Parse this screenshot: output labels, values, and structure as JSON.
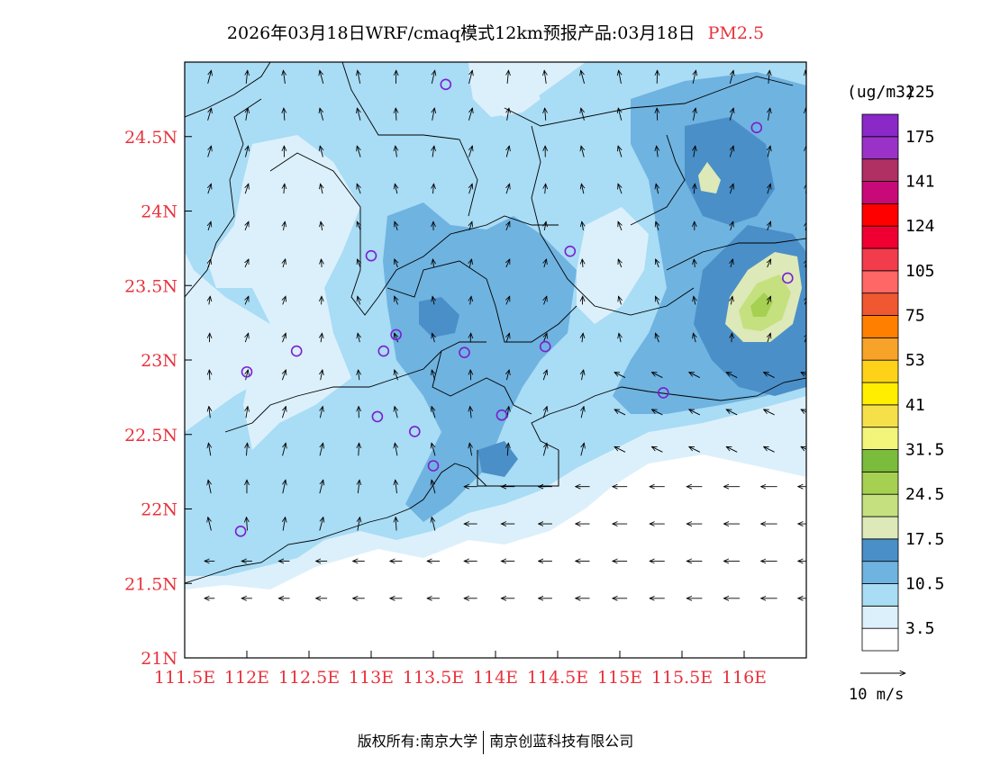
{
  "title": {
    "main": "2026年03月18日WRF/cmaq模式12km预报产品:03月18日",
    "pollutant": "PM2.5"
  },
  "axes": {
    "lat_labels": [
      "21N",
      "21.5N",
      "22N",
      "22.5N",
      "23N",
      "23.5N",
      "24N",
      "24.5N"
    ],
    "lon_labels": [
      "111.5E",
      "112E",
      "112.5E",
      "113E",
      "113.5E",
      "114E",
      "114.5E",
      "115E",
      "115.5E",
      "116E"
    ],
    "lon_range": [
      111.5,
      116.5
    ],
    "lat_range": [
      21.0,
      25.0
    ],
    "label_color": "#e8323c"
  },
  "legend": {
    "unit": "(ug/m3)",
    "labels": [
      "3.5",
      "10.5",
      "17.5",
      "24.5",
      "31.5",
      "41",
      "53",
      "75",
      "105",
      "124",
      "141",
      "175",
      "225"
    ],
    "colors": [
      "#ffffff",
      "#dcf0fb",
      "#a9dcf5",
      "#6fb3e0",
      "#4a8fc8",
      "#dde9b8",
      "#c5e07e",
      "#a6d052",
      "#7cbc3c",
      "#f2f57a",
      "#f6e04a",
      "#ffee00",
      "#ffd21a",
      "#f7a32a",
      "#ff8000",
      "#ef5830",
      "#ff6666",
      "#f23c4c",
      "#f00032",
      "#ff0000",
      "#c80a78",
      "#b03064",
      "#9b32c8",
      "#8a28c8"
    ]
  },
  "wind": {
    "scale_label": "10 m/s"
  },
  "stations": [
    [
      111.95,
      21.85
    ],
    [
      112.0,
      22.92
    ],
    [
      112.4,
      23.06
    ],
    [
      113.0,
      23.7
    ],
    [
      113.05,
      22.62
    ],
    [
      113.1,
      23.06
    ],
    [
      113.2,
      23.17
    ],
    [
      113.35,
      22.52
    ],
    [
      113.5,
      22.29
    ],
    [
      113.6,
      24.85
    ],
    [
      113.75,
      23.05
    ],
    [
      114.05,
      22.63
    ],
    [
      114.4,
      23.09
    ],
    [
      114.6,
      23.73
    ],
    [
      115.35,
      22.78
    ],
    [
      116.1,
      24.56
    ],
    [
      116.35,
      23.55
    ]
  ],
  "footer": {
    "left": "版权所有:南京大学",
    "right": "南京创蓝科技有限公司"
  }
}
